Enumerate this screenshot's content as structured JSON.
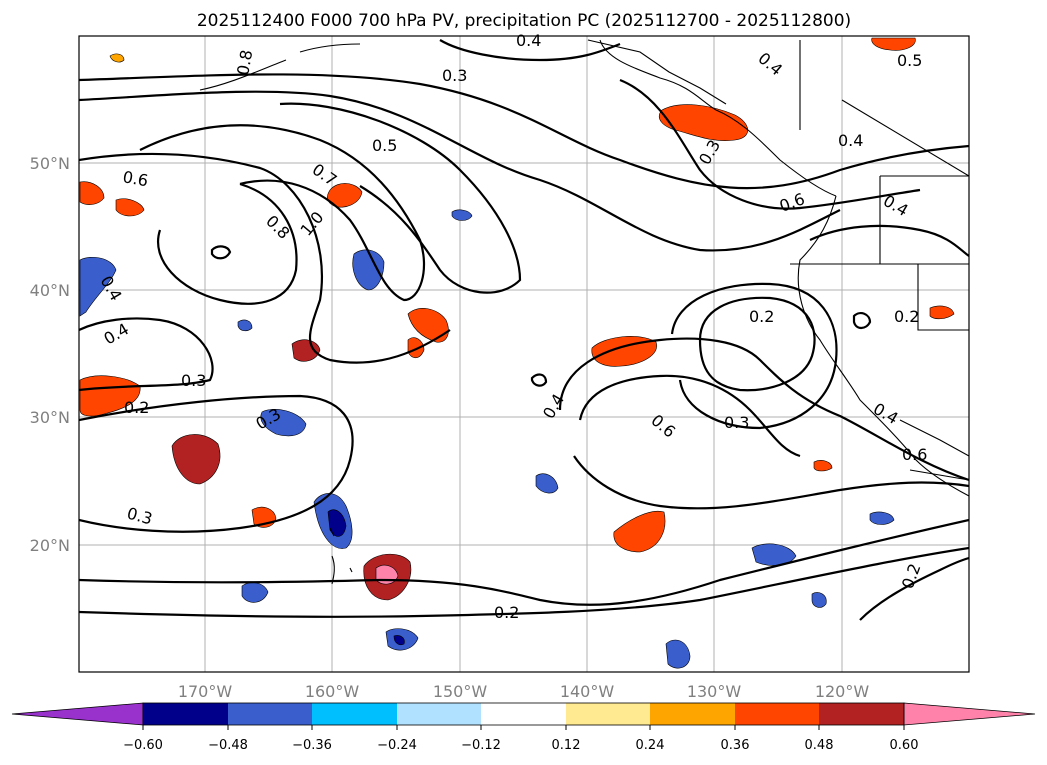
{
  "title": "2025112400 F000 700 hPa PV, precipitation PC (2025112700 - 2025112800)",
  "lon_ticks": [
    "170°W",
    "160°W",
    "150°W",
    "140°W",
    "130°W",
    "120°W"
  ],
  "lat_ticks": [
    "50°N",
    "40°N",
    "30°N",
    "20°N"
  ],
  "colorbar": {
    "tick_labels": [
      "−0.60",
      "−0.48",
      "−0.36",
      "−0.24",
      "−0.12",
      "0.12",
      "0.24",
      "0.36",
      "0.48",
      "0.60"
    ],
    "colors": [
      "#9932cc",
      "#00008b",
      "#3a5fcd",
      "#00bfff",
      "#b0e2ff",
      "#ffffff",
      "#ffe991",
      "#ffa500",
      "#ff4500",
      "#b22222",
      "#ff82ab"
    ]
  },
  "contour_labels": [
    "0.8",
    "0.3",
    "0.4",
    "0.5",
    "0.6",
    "0.7",
    "1.0",
    "0.8",
    "0.4",
    "0.4",
    "0.3",
    "0.2",
    "0.3",
    "0.2",
    "0.3",
    "0.4",
    "0.6",
    "0.3",
    "0.2",
    "0.3",
    "0.4",
    "0.4",
    "0.5",
    "0.6",
    "0.2",
    "0.2",
    "0.4",
    "0.6",
    "0.4"
  ]
}
